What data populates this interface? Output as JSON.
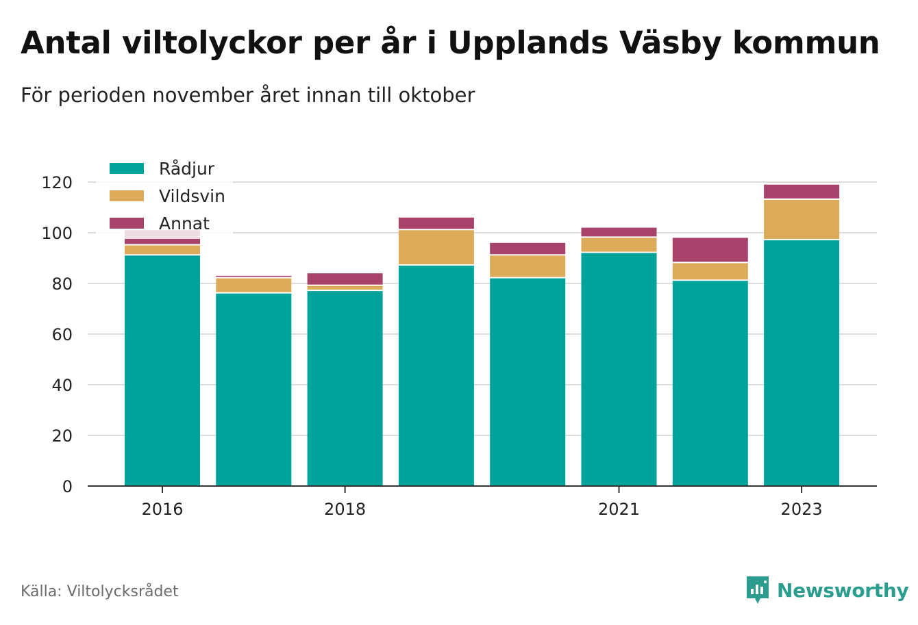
{
  "title": "Antal viltolyckor per år i Upplands Väsby kommun",
  "subtitle": "För perioden november året innan till oktober",
  "source": "Källa: Viltolycksrådet",
  "brand": "Newsworthy",
  "colors": {
    "radjur": "#00a39a",
    "vildsvin": "#dbab5a",
    "annat": "#a7436a",
    "grid": "#dddddd",
    "axis": "#333333",
    "brand": "#2a9d8f"
  },
  "chart_data": {
    "type": "bar",
    "stacked": true,
    "categories": [
      "2016",
      "2017",
      "2018",
      "2019",
      "2020",
      "2021",
      "2022",
      "2023"
    ],
    "x_tick_labels": [
      "2016",
      "",
      "2018",
      "",
      "",
      "2021",
      "",
      "2023"
    ],
    "y_ticks": [
      "0",
      "20",
      "40",
      "60",
      "80",
      "100",
      "120"
    ],
    "ylim": [
      0,
      120
    ],
    "grid": true,
    "legend_position": "top-left",
    "series": [
      {
        "name": "Rådjur",
        "values": [
          91,
          76,
          77,
          87,
          82,
          92,
          81,
          97
        ]
      },
      {
        "name": "Vildsvin",
        "values": [
          4,
          6,
          2,
          14,
          9,
          6,
          7,
          16
        ]
      },
      {
        "name": "Annat",
        "values": [
          6,
          1,
          5,
          5,
          5,
          4,
          10,
          6
        ]
      }
    ]
  }
}
